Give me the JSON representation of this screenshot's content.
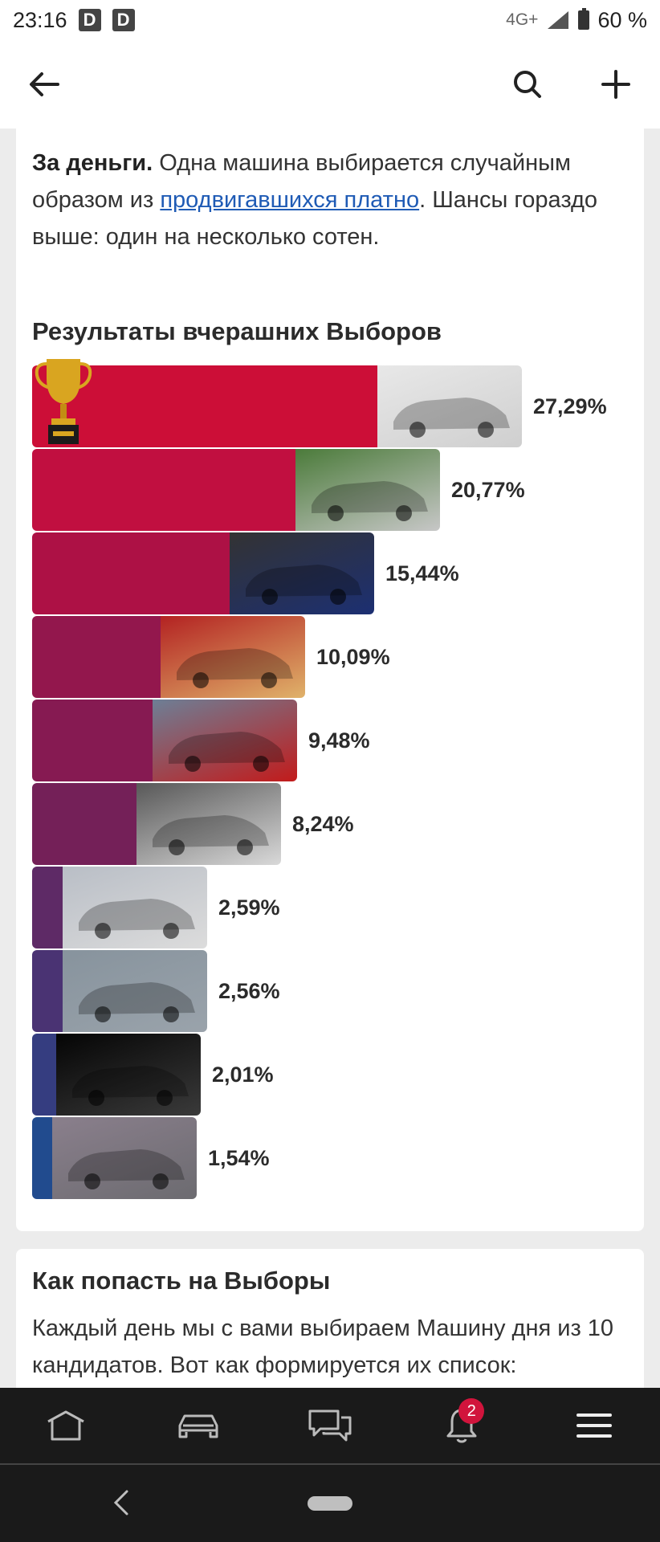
{
  "status_bar": {
    "time": "23:16",
    "left_icons": [
      "D",
      "D"
    ],
    "network": "4G+",
    "battery": "60 %"
  },
  "toolbar": {
    "back_icon": "arrow-left-icon",
    "search_icon": "search-icon",
    "add_icon": "plus-icon"
  },
  "info_card": {
    "bold": "За деньги.",
    "text1": " Одна машина выбирается случайным образом из ",
    "link": "продвигавшихся платно",
    "text2": ". Шансы гораздо выше: один на несколько сотен."
  },
  "results": {
    "title": "Результаты вчерашних Выборов",
    "items": [
      {
        "percent": "27,29%",
        "share": 27.29,
        "color": "#cc0e37",
        "photo": "silver-car"
      },
      {
        "percent": "20,77%",
        "share": 20.77,
        "color": "#c10f40",
        "photo": "red-sedan"
      },
      {
        "percent": "15,44%",
        "share": 15.44,
        "color": "#ad1145",
        "photo": "blue-sedan"
      },
      {
        "percent": "10,09%",
        "share": 10.09,
        "color": "#93174d",
        "photo": "red-coupe-rear"
      },
      {
        "percent": "9,48%",
        "share": 9.48,
        "color": "#861a52",
        "photo": "red-sedan-garage"
      },
      {
        "percent": "8,24%",
        "share": 8.24,
        "color": "#742058",
        "photo": "black-suv-snow"
      },
      {
        "percent": "2,59%",
        "share": 2.59,
        "color": "#5e2a66",
        "photo": "white-sedan-front"
      },
      {
        "percent": "2,56%",
        "share": 2.56,
        "color": "#4a3373",
        "photo": "blue-hatchback"
      },
      {
        "percent": "2,01%",
        "share": 2.01,
        "color": "#353d80",
        "photo": "white-car-headlight"
      },
      {
        "percent": "1,54%",
        "share": 1.54,
        "color": "#214b8e",
        "photo": "grey-car-front"
      }
    ]
  },
  "how_card": {
    "title": "Как попасть на Выборы",
    "text": "Каждый день мы с вами выбираем Машину дня из 10 кандидатов. Вот как формируется их список:"
  },
  "bottom_nav": {
    "items": [
      "home-icon",
      "car-icon",
      "messages-icon",
      "bell-icon",
      "menu-icon"
    ],
    "notification_count": "2"
  }
}
